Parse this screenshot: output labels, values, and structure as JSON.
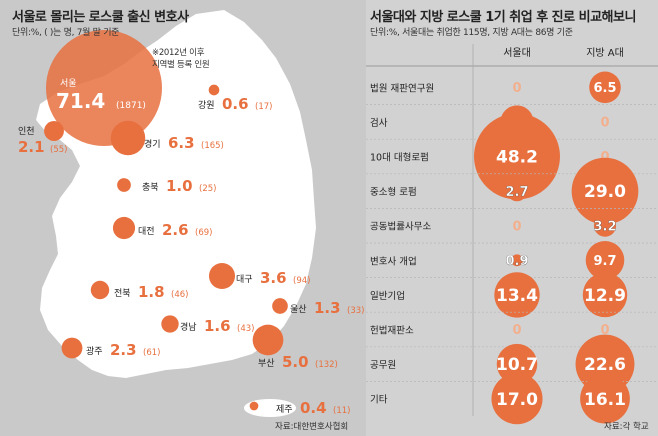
{
  "left": {
    "title": "서울로 몰리는 로스쿨 출신 변호사",
    "subtitle": "단위:%, ( )는 명, 7월 말 기준",
    "note_line1": "※2012년 이후",
    "note_line2": "지역별 등록 인원",
    "source": "자료:대한변호사협회"
  },
  "right": {
    "title": "서울대와 지방 로스쿨 1기 취업 후 진로 비교해보니",
    "subtitle": "단위:%, 서울대는 취업한 115명, 지방 A대는 86명 기준",
    "source": "자료:각 학교"
  },
  "colors": {
    "accent": "#e8703f",
    "map": "#ffffff",
    "bg_left": "#c9c9c9",
    "bg_right": "#d2d2d2",
    "zero": "#f2b08f"
  },
  "chart_data": [
    {
      "type": "bubble-map",
      "title": "서울로 몰리는 로스쿨 출신 변호사",
      "unit": "%",
      "regions": [
        {
          "name": "서울",
          "value": 71.4,
          "count": 1871
        },
        {
          "name": "인천",
          "value": 2.1,
          "count": 55
        },
        {
          "name": "강원",
          "value": 0.6,
          "count": 17
        },
        {
          "name": "경기",
          "value": 6.3,
          "count": 165
        },
        {
          "name": "충북",
          "value": 1.0,
          "count": 25
        },
        {
          "name": "대전",
          "value": 2.6,
          "count": 69
        },
        {
          "name": "대구",
          "value": 3.6,
          "count": 94
        },
        {
          "name": "전북",
          "value": 1.8,
          "count": 46
        },
        {
          "name": "울산",
          "value": 1.3,
          "count": 33
        },
        {
          "name": "경남",
          "value": 1.6,
          "count": 43
        },
        {
          "name": "광주",
          "value": 2.3,
          "count": 61
        },
        {
          "name": "부산",
          "value": 5.0,
          "count": 132
        },
        {
          "name": "제주",
          "value": 0.4,
          "count": 11
        }
      ]
    },
    {
      "type": "table",
      "title": "서울대와 지방 로스쿨 1기 취업 후 진로 비교해보니",
      "columns": [
        "서울대",
        "지방 A대"
      ],
      "rows": [
        {
          "label": "법원 재판연구원",
          "values": [
            0,
            6.5
          ]
        },
        {
          "label": "검사",
          "values": [
            7.1,
            0
          ]
        },
        {
          "label": "10대 대형로펌",
          "values": [
            48.2,
            0
          ]
        },
        {
          "label": "중소형 로펌",
          "values": [
            2.7,
            29.0
          ]
        },
        {
          "label": "공동법률사무소",
          "values": [
            0,
            3.2
          ]
        },
        {
          "label": "변호사 개업",
          "values": [
            0.9,
            9.7
          ]
        },
        {
          "label": "일반기업",
          "values": [
            13.4,
            12.9
          ]
        },
        {
          "label": "헌법재판소",
          "values": [
            0,
            0
          ]
        },
        {
          "label": "공무원",
          "values": [
            10.7,
            22.6
          ]
        },
        {
          "label": "기타",
          "values": [
            17.0,
            16.1
          ]
        }
      ]
    }
  ]
}
